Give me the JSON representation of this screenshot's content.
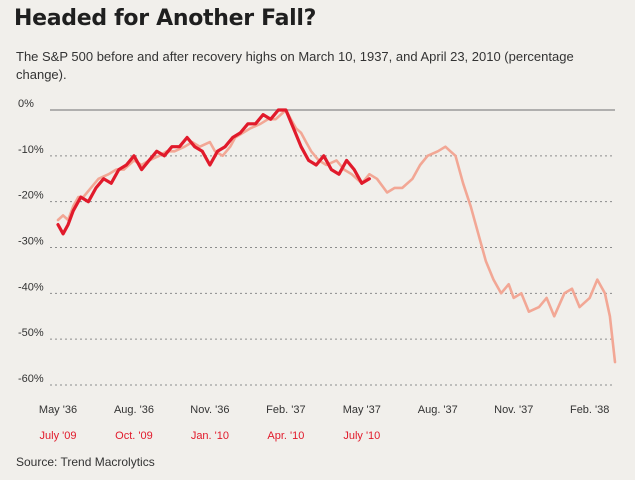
{
  "header": {
    "title": "Headed for Another Fall?",
    "subtitle": "The S&P 500 before and after recovery highs on March 10, 1937, and April 23, 2010 (percentage change)."
  },
  "source": "Source: Trend Macrolytics",
  "colors": {
    "series_1937": "#f2a795",
    "series_2010": "#e11a2b",
    "grid": "#8c8c8c",
    "zero_line": "#9a9a9a",
    "background": "#f1efeb"
  },
  "chart_data": {
    "type": "line",
    "ylim": [
      -60,
      0
    ],
    "xlim": [
      0,
      22
    ],
    "yticks": [
      {
        "value": 0,
        "label": "0%"
      },
      {
        "value": -10,
        "label": "-10%"
      },
      {
        "value": -20,
        "label": "-20%"
      },
      {
        "value": -30,
        "label": "-30%"
      },
      {
        "value": -40,
        "label": "-40%"
      },
      {
        "value": -50,
        "label": "-50%"
      },
      {
        "value": -60,
        "label": "-60%"
      }
    ],
    "xticks_1937": [
      {
        "x": 0,
        "label": "May '36"
      },
      {
        "x": 3,
        "label": "Aug. '36"
      },
      {
        "x": 6,
        "label": "Nov. '36"
      },
      {
        "x": 9,
        "label": "Feb. '37"
      },
      {
        "x": 12,
        "label": "May '37"
      },
      {
        "x": 15,
        "label": "Aug. '37"
      },
      {
        "x": 18,
        "label": "Nov. '37"
      },
      {
        "x": 21,
        "label": "Feb. '38"
      }
    ],
    "xticks_2010": [
      {
        "x": 0,
        "label": "July '09"
      },
      {
        "x": 3,
        "label": "Oct. '09"
      },
      {
        "x": 6,
        "label": "Jan. '10"
      },
      {
        "x": 9,
        "label": "Apr. '10"
      },
      {
        "x": 12,
        "label": "July '10"
      }
    ],
    "series": [
      {
        "x": [
          0,
          0.2,
          0.4,
          0.6,
          0.8,
          1.0,
          1.3,
          1.6,
          2.0,
          2.3,
          2.6,
          3.0,
          3.3,
          3.6,
          4.0,
          4.3,
          4.6,
          5.0,
          5.3,
          5.6,
          6.0,
          6.2,
          6.5,
          6.8,
          7.0,
          7.3,
          7.6,
          8.0,
          8.3,
          8.6,
          8.8,
          9.0,
          9.2,
          9.4,
          9.6,
          9.8,
          10.0,
          10.3,
          10.6,
          11.0,
          11.3,
          11.6,
          12.0,
          12.3,
          12.6,
          13.0,
          13.3,
          13.6,
          14.0,
          14.3,
          14.6,
          15.0,
          15.3,
          15.5,
          15.7,
          16.0,
          16.3,
          16.6,
          16.9,
          17.2,
          17.5,
          17.8,
          18.0,
          18.3,
          18.6,
          19.0,
          19.3,
          19.6,
          20.0,
          20.3,
          20.6,
          21.0,
          21.3,
          21.6,
          21.8,
          22.0
        ],
        "values": [
          -24,
          -23,
          -24,
          -21,
          -19,
          -19,
          -17,
          -15,
          -14,
          -13,
          -13,
          -11,
          -12,
          -11,
          -10,
          -9,
          -9,
          -8,
          -7,
          -8,
          -7,
          -9,
          -10,
          -8,
          -6,
          -5,
          -4,
          -3,
          -2,
          -2,
          -1,
          0,
          -2,
          -4,
          -5,
          -7,
          -9,
          -11,
          -12,
          -11,
          -13,
          -14,
          -16,
          -14,
          -15,
          -18,
          -17,
          -17,
          -15,
          -12,
          -10,
          -9,
          -8,
          -9,
          -10,
          -16,
          -21,
          -27,
          -33,
          -37,
          -40,
          -38,
          -41,
          -40,
          -44,
          -43,
          -41,
          -45,
          -40,
          -39,
          -43,
          -41,
          -37,
          -40,
          -45,
          -55
        ]
      },
      {
        "x": [
          0,
          0.2,
          0.4,
          0.6,
          0.9,
          1.2,
          1.5,
          1.8,
          2.1,
          2.4,
          2.7,
          3.0,
          3.3,
          3.6,
          3.9,
          4.2,
          4.5,
          4.8,
          5.1,
          5.4,
          5.7,
          6.0,
          6.3,
          6.6,
          6.9,
          7.2,
          7.5,
          7.8,
          8.1,
          8.4,
          8.7,
          9.0,
          9.3,
          9.6,
          9.9,
          10.2,
          10.5,
          10.8,
          11.1,
          11.4,
          11.7,
          12.0,
          12.3
        ],
        "values": [
          -25,
          -27,
          -25,
          -22,
          -19,
          -20,
          -17,
          -15,
          -16,
          -13,
          -12,
          -10,
          -13,
          -11,
          -9,
          -10,
          -8,
          -8,
          -6,
          -8,
          -9,
          -12,
          -9,
          -8,
          -6,
          -5,
          -3,
          -3,
          -1,
          -2,
          0,
          0,
          -4,
          -8,
          -11,
          -12,
          -10,
          -13,
          -14,
          -11,
          -13,
          -16,
          -15
        ]
      }
    ]
  }
}
